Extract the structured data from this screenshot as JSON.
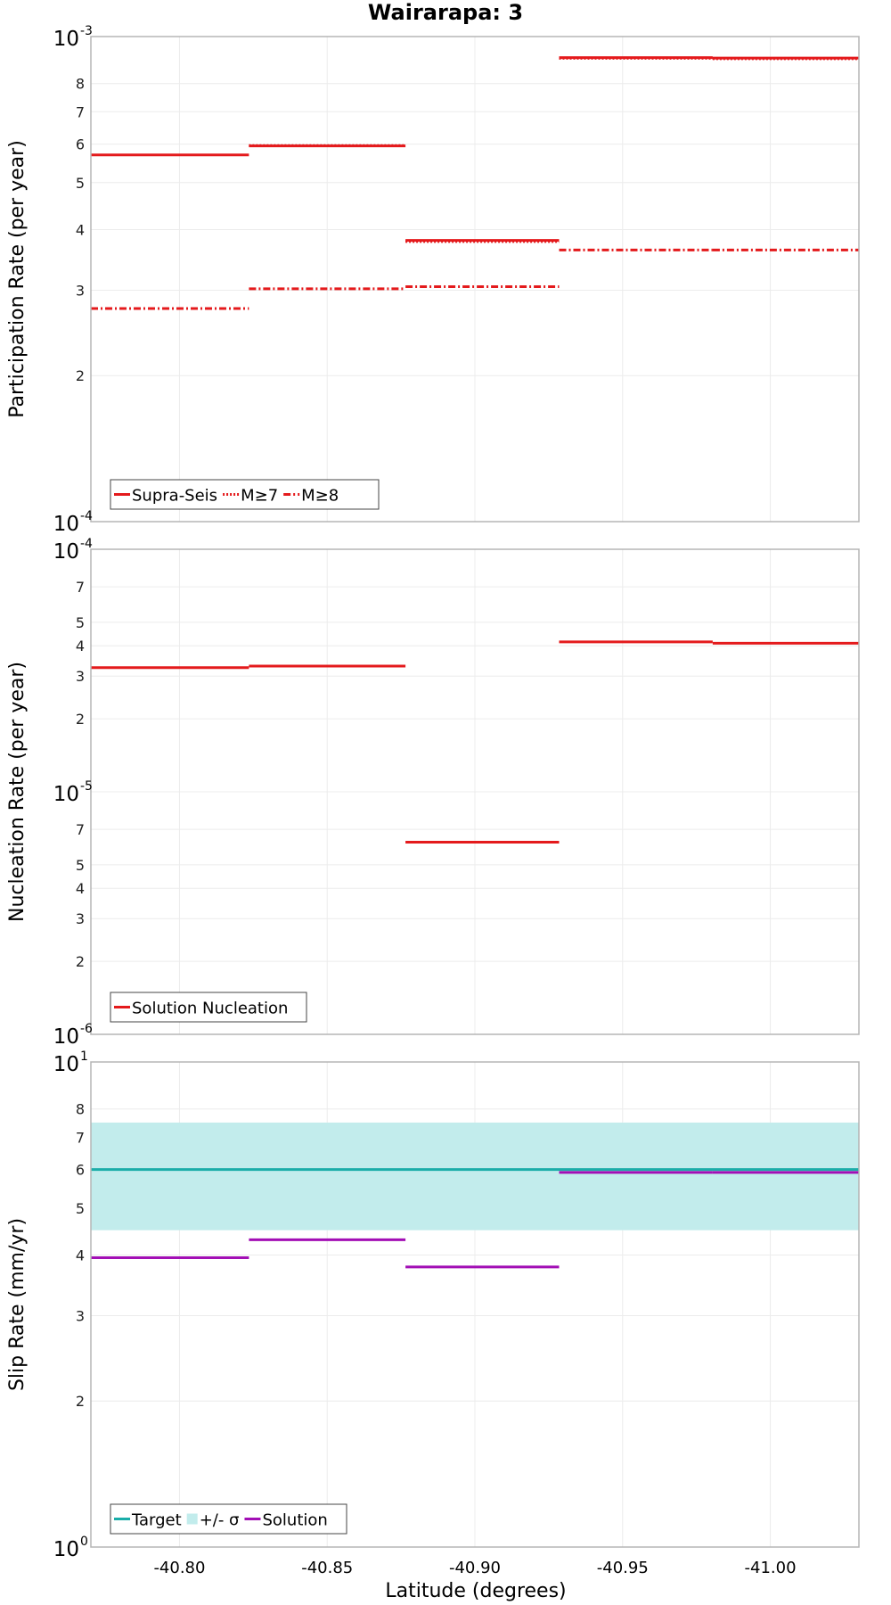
{
  "chart_data": {
    "type": "line",
    "title": "Wairarapa: 3",
    "xlabel": "Latitude (degrees)",
    "xlim": [
      -40.77,
      -41.03
    ],
    "xticks": [
      {
        "v": -40.8,
        "label": "-40.80"
      },
      {
        "v": -40.85,
        "label": "-40.85"
      },
      {
        "v": -40.9,
        "label": "-40.90"
      },
      {
        "v": -40.95,
        "label": "-40.95"
      },
      {
        "v": -41.0,
        "label": "-41.00"
      }
    ],
    "panels": [
      {
        "id": "participation",
        "ylabel": "Participation Rate (per year)",
        "yscale": "log",
        "ylim": [
          0.0001,
          0.001
        ],
        "yticks": [
          {
            "v": 0.0002,
            "label": "2"
          },
          {
            "v": 0.0003,
            "label": "3"
          },
          {
            "v": 0.0004,
            "label": "4"
          },
          {
            "v": 0.0005,
            "label": "5"
          },
          {
            "v": 0.0006,
            "label": "6"
          },
          {
            "v": 0.0007,
            "label": "7"
          },
          {
            "v": 0.0008,
            "label": "8"
          }
        ],
        "decades": [
          {
            "v": 0.001,
            "base": "10",
            "exp": "-3"
          },
          {
            "v": 0.0001,
            "base": "10",
            "exp": "-4"
          }
        ],
        "series": [
          {
            "name": "Supra-Seis",
            "color": "#e41a1c",
            "style": "solid",
            "segments": [
              {
                "x0": -40.77,
                "x1": -40.8235,
                "y": 0.00057
              },
              {
                "x0": -40.8235,
                "x1": -40.8765,
                "y": 0.000595
              },
              {
                "x0": -40.8765,
                "x1": -40.9285,
                "y": 0.00038
              },
              {
                "x0": -40.9285,
                "x1": -40.9805,
                "y": 0.000905
              },
              {
                "x0": -40.9805,
                "x1": -41.03,
                "y": 0.000903
              }
            ]
          },
          {
            "name": "M≥7",
            "color": "#e41a1c",
            "style": "dotted",
            "segments": [
              {
                "x0": -40.8235,
                "x1": -40.8765,
                "y": 0.000596
              },
              {
                "x0": -40.8765,
                "x1": -40.9285,
                "y": 0.000378
              },
              {
                "x0": -40.9285,
                "x1": -40.9805,
                "y": 0.000902
              },
              {
                "x0": -40.9805,
                "x1": -41.03,
                "y": 0.0009
              }
            ]
          },
          {
            "name": "M≥8",
            "color": "#e41a1c",
            "style": "dashdot",
            "segments": [
              {
                "x0": -40.77,
                "x1": -40.8235,
                "y": 0.000275
              },
              {
                "x0": -40.8235,
                "x1": -40.8765,
                "y": 0.000302
              },
              {
                "x0": -40.8765,
                "x1": -40.9285,
                "y": 0.000305
              },
              {
                "x0": -40.9285,
                "x1": -40.9805,
                "y": 0.000363
              },
              {
                "x0": -40.9805,
                "x1": -41.03,
                "y": 0.000363
              }
            ]
          }
        ],
        "legend": {
          "position": "bottom-left",
          "entries": [
            {
              "label": "Supra-Seis",
              "kind": "line",
              "color": "#e41a1c",
              "style": "solid"
            },
            {
              "label": "M≥7",
              "kind": "line",
              "color": "#e41a1c",
              "style": "dotted"
            },
            {
              "label": "M≥8",
              "kind": "line",
              "color": "#e41a1c",
              "style": "dashdot"
            }
          ]
        }
      },
      {
        "id": "nucleation",
        "ylabel": "Nucleation Rate (per year)",
        "yscale": "log",
        "ylim": [
          1e-06,
          0.0001
        ],
        "yticks": [
          {
            "v": 2e-05,
            "label": "2"
          },
          {
            "v": 3e-05,
            "label": "3"
          },
          {
            "v": 4e-05,
            "label": "4"
          },
          {
            "v": 5e-05,
            "label": "5"
          },
          {
            "v": 7e-05,
            "label": "7"
          },
          {
            "v": 2e-06,
            "label": "2"
          },
          {
            "v": 3e-06,
            "label": "3"
          },
          {
            "v": 4e-06,
            "label": "4"
          },
          {
            "v": 5e-06,
            "label": "5"
          },
          {
            "v": 7e-06,
            "label": "7"
          }
        ],
        "decades": [
          {
            "v": 0.0001,
            "base": "10",
            "exp": "-4"
          },
          {
            "v": 1e-05,
            "base": "10",
            "exp": "-5"
          },
          {
            "v": 1e-06,
            "base": "10",
            "exp": "-6"
          }
        ],
        "series": [
          {
            "name": "Solution Nucleation",
            "color": "#e41a1c",
            "style": "solid",
            "segments": [
              {
                "x0": -40.77,
                "x1": -40.8235,
                "y": 3.25e-05
              },
              {
                "x0": -40.8235,
                "x1": -40.8765,
                "y": 3.3e-05
              },
              {
                "x0": -40.8765,
                "x1": -40.9285,
                "y": 6.2e-06
              },
              {
                "x0": -40.9285,
                "x1": -40.9805,
                "y": 4.15e-05
              },
              {
                "x0": -40.9805,
                "x1": -41.03,
                "y": 4.1e-05
              }
            ]
          }
        ],
        "legend": {
          "position": "bottom-left",
          "entries": [
            {
              "label": "Solution Nucleation",
              "kind": "line",
              "color": "#e41a1c",
              "style": "solid"
            }
          ]
        }
      },
      {
        "id": "sliprate",
        "ylabel": "Slip Rate (mm/yr)",
        "yscale": "log",
        "ylim": [
          1,
          10
        ],
        "yticks": [
          {
            "v": 2,
            "label": "2"
          },
          {
            "v": 3,
            "label": "3"
          },
          {
            "v": 4,
            "label": "4"
          },
          {
            "v": 5,
            "label": "5"
          },
          {
            "v": 6,
            "label": "6"
          },
          {
            "v": 7,
            "label": "7"
          },
          {
            "v": 8,
            "label": "8"
          }
        ],
        "decades": [
          {
            "v": 10,
            "base": "10",
            "exp": "1"
          },
          {
            "v": 1,
            "base": "10",
            "exp": "0"
          }
        ],
        "band": {
          "name": "+/- σ",
          "color": "#c2ecec",
          "y0": 4.5,
          "y1": 7.5,
          "x0": -40.77,
          "x1": -41.03
        },
        "series": [
          {
            "name": "Target",
            "color": "#1aada9",
            "style": "solid",
            "segments": [
              {
                "x0": -40.77,
                "x1": -41.03,
                "y": 6.0
              }
            ]
          },
          {
            "name": "Solution",
            "color": "#a20fb5",
            "style": "solid",
            "segments": [
              {
                "x0": -40.77,
                "x1": -40.8235,
                "y": 3.95
              },
              {
                "x0": -40.8235,
                "x1": -40.8765,
                "y": 4.3
              },
              {
                "x0": -40.8765,
                "x1": -40.9285,
                "y": 3.78
              },
              {
                "x0": -40.9285,
                "x1": -40.9805,
                "y": 5.92
              },
              {
                "x0": -40.9805,
                "x1": -41.03,
                "y": 5.92
              }
            ]
          }
        ],
        "legend": {
          "position": "bottom-left",
          "entries": [
            {
              "label": "Target",
              "kind": "line",
              "color": "#1aada9",
              "style": "solid"
            },
            {
              "label": "+/- σ",
              "kind": "box",
              "color": "#c2ecec",
              "style": "solid"
            },
            {
              "label": "Solution",
              "kind": "line",
              "color": "#a20fb5",
              "style": "solid"
            }
          ]
        }
      }
    ]
  }
}
